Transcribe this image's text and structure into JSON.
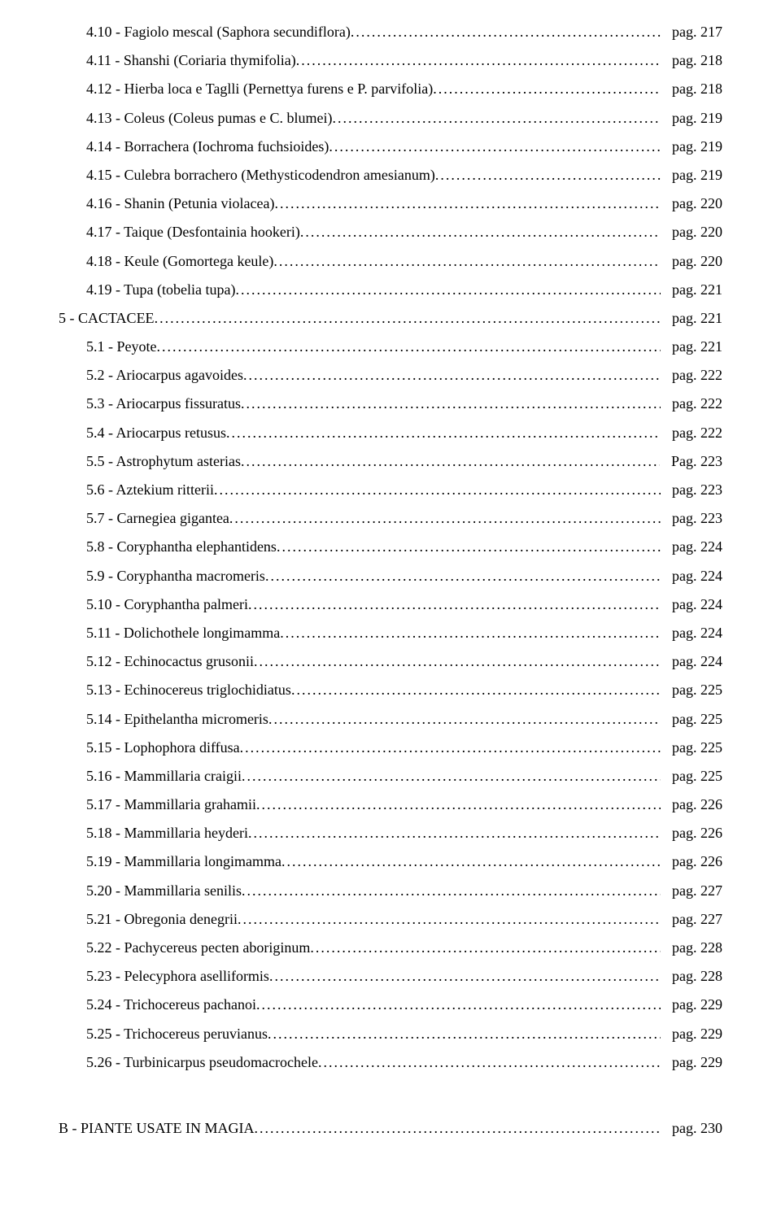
{
  "entries": [
    {
      "indent": true,
      "title": "4.10 - Fagiolo mescal (Saphora secundiflora)",
      "page": "pag. 217"
    },
    {
      "indent": true,
      "title": "4.11 - Shanshi (Coriaria thymifolia)",
      "page": "pag. 218"
    },
    {
      "indent": true,
      "title": "4.12 - Hierba loca e Taglli (Pernettya furens e P. parvifolia)",
      "page": "pag. 218"
    },
    {
      "indent": true,
      "title": "4.13 - Coleus (Coleus pumas e C. blumei) ",
      "page": "pag. 219"
    },
    {
      "indent": true,
      "title": "4.14 - Borrachera (Iochroma fuchsioides) ",
      "page": "pag. 219"
    },
    {
      "indent": true,
      "title": "4.15 - Culebra borrachero (Methysticodendron amesianum)",
      "page": "pag. 219"
    },
    {
      "indent": true,
      "title": "4.16 - Shanin (Petunia violacea)",
      "page": "pag. 220"
    },
    {
      "indent": true,
      "title": "4.17 - Taique (Desfontainia hookeri)",
      "page": "pag. 220"
    },
    {
      "indent": true,
      "title": "4.18 - Keule (Gomortega keule)",
      "page": "pag. 220"
    },
    {
      "indent": true,
      "title": "4.19 - Tupa (tobelia tupa)",
      "page": "pag. 221"
    },
    {
      "indent": false,
      "title": "5 - CACTACEE",
      "page": "pag. 221"
    },
    {
      "indent": true,
      "title": "5.1 - Peyote ",
      "page": "pag. 221"
    },
    {
      "indent": true,
      "title": "5.2 - Ariocarpus agavoides ",
      "page": "pag. 222"
    },
    {
      "indent": true,
      "title": "5.3 - Ariocarpus fissuratus ",
      "page": "pag. 222"
    },
    {
      "indent": true,
      "title": "5.4 - Ariocarpus retusus ",
      "page": "pag. 222"
    },
    {
      "indent": true,
      "title": "5.5 - Astrophytum asterias ",
      "page": "Pag. 223"
    },
    {
      "indent": true,
      "title": "5.6 - Aztekium ritterii",
      "page": "pag. 223"
    },
    {
      "indent": true,
      "title": "5.7 - Carnegiea gigantea",
      "page": "pag. 223"
    },
    {
      "indent": true,
      "title": "5.8 - Coryphantha elephantidens",
      "page": "pag. 224"
    },
    {
      "indent": true,
      "title": "5.9 - Coryphantha macromeris",
      "page": "pag. 224"
    },
    {
      "indent": true,
      "title": "5.10 - Coryphantha palmeri",
      "page": "pag. 224"
    },
    {
      "indent": true,
      "title": "5.11 - Dolichothele longimamma",
      "page": "pag. 224"
    },
    {
      "indent": true,
      "title": "5.12 - Echinocactus grusonii",
      "page": "pag. 224"
    },
    {
      "indent": true,
      "title": "5.13 - Echinocereus triglochidiatus",
      "page": "pag. 225"
    },
    {
      "indent": true,
      "title": "5.14 - Epithelantha micromeris",
      "page": "pag. 225"
    },
    {
      "indent": true,
      "title": "5.15 - Lophophora diffusa",
      "page": "pag. 225"
    },
    {
      "indent": true,
      "title": "5.16 - Mammillaria craigii",
      "page": "pag. 225"
    },
    {
      "indent": true,
      "title": "5.17 - Mammillaria grahamii",
      "page": "pag. 226"
    },
    {
      "indent": true,
      "title": "5.18 - Mammillaria heyderi",
      "page": "pag. 226"
    },
    {
      "indent": true,
      "title": "5.19 - Mammillaria longimamma",
      "page": "pag. 226"
    },
    {
      "indent": true,
      "title": "5.20 - Mammillaria senilis",
      "page": "pag. 227"
    },
    {
      "indent": true,
      "title": "5.21 - Obregonia denegrii",
      "page": "pag. 227"
    },
    {
      "indent": true,
      "title": "5.22 - Pachycereus pecten aboriginum ",
      "page": "pag. 228"
    },
    {
      "indent": true,
      "title": "5.23 - Pelecyphora aselliformis ",
      "page": "pag. 228"
    },
    {
      "indent": true,
      "title": "5.24 - Trichocereus pachanoi ",
      "page": "pag. 229"
    },
    {
      "indent": true,
      "title": "5.25 - Trichocereus peruvianus ",
      "page": "pag. 229"
    },
    {
      "indent": true,
      "title": "5.26 - Turbinicarpus pseudomacrochele",
      "page": "pag. 229"
    }
  ],
  "footer": {
    "title": "B - PIANTE USATE IN MAGIA",
    "page": "pag. 230"
  }
}
